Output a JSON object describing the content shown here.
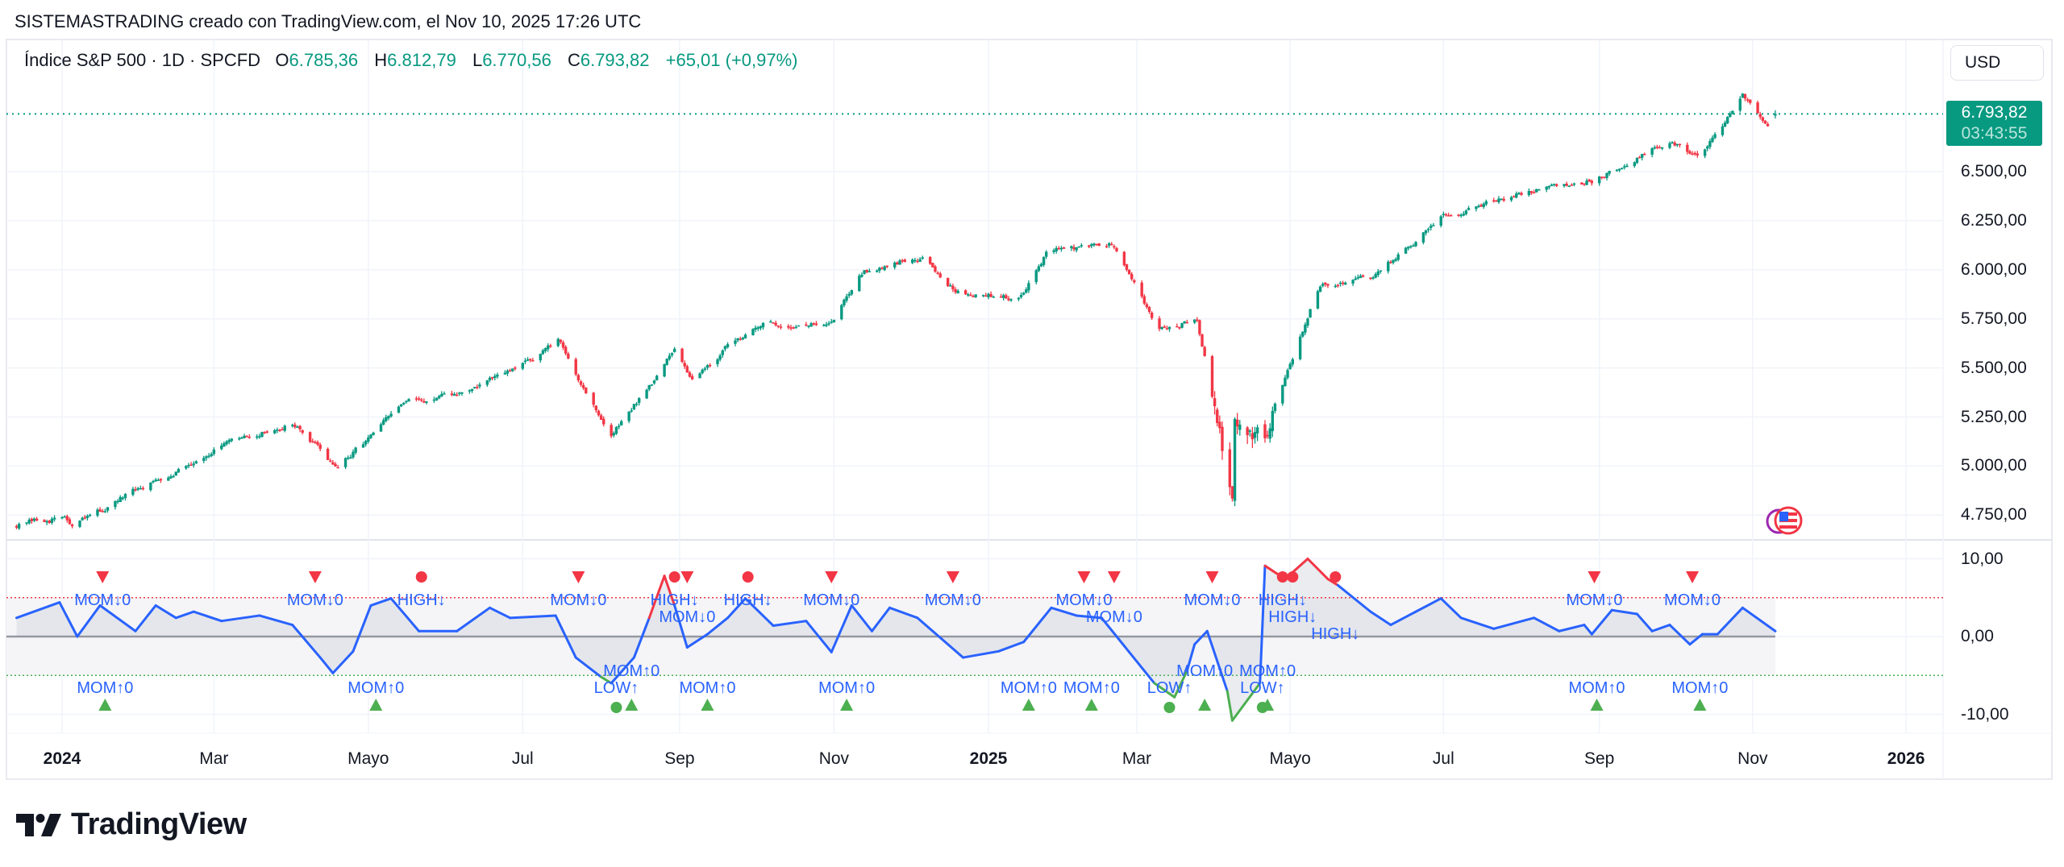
{
  "header": {
    "title": "SISTEMASTRADING creado con TradingView.com, el Nov 10, 2025 17:26 UTC"
  },
  "legend": {
    "symbol": "Índice S&P 500 · 1D · SPCFD",
    "open_label": "O",
    "open": "6.785,36",
    "high_label": "H",
    "high": "6.812,79",
    "low_label": "L",
    "low": "6.770,56",
    "close_label": "C",
    "close": "6.793,82",
    "change": "+65,01 (+0,97%)"
  },
  "currency_button": "USD",
  "last_price": {
    "value": "6.793,82",
    "countdown": "03:43:55"
  },
  "colors": {
    "up": "#089981",
    "down": "#f23645",
    "indicator": "#2962ff",
    "overbought": "#f23645",
    "oversold": "#4caf50"
  },
  "branding": {
    "logo_text": "TradingView"
  },
  "chart_data": [
    {
      "type": "candlestick",
      "title": "Índice S&P 500 · 1D · SPCFD",
      "y_ticks": [
        "6.500,00",
        "6.250,00",
        "6.000,00",
        "5.750,00",
        "5.500,00",
        "5.250,00",
        "5.000,00",
        "4.750,00"
      ],
      "y_tick_values": [
        6500,
        6250,
        6000,
        5750,
        5500,
        5250,
        5000,
        4750
      ],
      "ylim": [
        4623,
        7173
      ],
      "last_candle": {
        "date": "2025-11-10",
        "open": 6785.36,
        "high": 6812.79,
        "low": 6770.56,
        "close": 6793.82
      },
      "close_anchors": [
        [
          "2023-12-14",
          4700
        ],
        [
          "2024-01-02",
          4740
        ],
        [
          "2024-01-05",
          4690
        ],
        [
          "2024-02-01",
          4884
        ],
        [
          "2024-03-01",
          5085
        ],
        [
          "2024-04-01",
          5219
        ],
        [
          "2024-04-19",
          4985
        ],
        [
          "2024-05-15",
          5320
        ],
        [
          "2024-06-03",
          5353
        ],
        [
          "2024-06-28",
          5487
        ],
        [
          "2024-07-15",
          5634
        ],
        [
          "2024-08-05",
          5152
        ],
        [
          "2024-08-30",
          5587
        ],
        [
          "2024-09-06",
          5453
        ],
        [
          "2024-10-01",
          5721
        ],
        [
          "2024-10-31",
          5720
        ],
        [
          "2024-11-11",
          5990
        ],
        [
          "2024-12-06",
          6070
        ],
        [
          "2024-12-19",
          5889
        ],
        [
          "2025-01-13",
          5855
        ],
        [
          "2025-01-24",
          6090
        ],
        [
          "2025-02-19",
          6130
        ],
        [
          "2025-03-10",
          5688
        ],
        [
          "2025-03-25",
          5755
        ],
        [
          "2025-04-04",
          5100
        ],
        [
          "2025-04-08",
          4884
        ],
        [
          "2025-04-09",
          5252
        ],
        [
          "2025-04-21",
          5152
        ],
        [
          "2025-05-02",
          5554
        ],
        [
          "2025-05-13",
          5922
        ],
        [
          "2025-06-02",
          5956
        ],
        [
          "2025-06-30",
          6257
        ],
        [
          "2025-07-31",
          6391
        ],
        [
          "2025-08-29",
          6458
        ],
        [
          "2025-09-30",
          6659
        ],
        [
          "2025-10-10",
          6560
        ],
        [
          "2025-10-28",
          6880
        ],
        [
          "2025-11-07",
          6726
        ],
        [
          "2025-11-10",
          6793.82
        ]
      ]
    },
    {
      "type": "line",
      "title": "Momentum oscillator",
      "y_ticks": [
        "10,00",
        "0,00",
        "-10,00"
      ],
      "y_tick_values": [
        10,
        0,
        -10
      ],
      "ylim": [
        -12.6,
        12.5
      ],
      "upper_level": 5,
      "lower_level": -5,
      "series": [
        [
          "2023-12-14",
          2.4
        ],
        [
          "2023-12-31",
          4.4
        ],
        [
          "2024-01-07",
          0
        ],
        [
          "2024-01-16",
          4
        ],
        [
          "2024-01-30",
          0.7
        ],
        [
          "2024-02-07",
          4
        ],
        [
          "2024-02-15",
          2.4
        ],
        [
          "2024-02-22",
          3.2
        ],
        [
          "2024-03-04",
          2.0
        ],
        [
          "2024-03-19",
          2.7
        ],
        [
          "2024-04-01",
          1.5
        ],
        [
          "2024-04-12",
          -2.7
        ],
        [
          "2024-04-17",
          -4.7
        ],
        [
          "2024-04-25",
          -1.9
        ],
        [
          "2024-05-02",
          4
        ],
        [
          "2024-05-10",
          4.9
        ],
        [
          "2024-05-21",
          0.7
        ],
        [
          "2024-06-05",
          0.7
        ],
        [
          "2024-06-18",
          3.7
        ],
        [
          "2024-06-26",
          2.4
        ],
        [
          "2024-07-14",
          2.7
        ],
        [
          "2024-07-22",
          -2.7
        ],
        [
          "2024-08-01",
          -5.2
        ],
        [
          "2024-08-05",
          -6
        ],
        [
          "2024-08-14",
          -2.7
        ],
        [
          "2024-08-20",
          2.4
        ],
        [
          "2024-08-26",
          7.8
        ],
        [
          "2024-08-30",
          4
        ],
        [
          "2024-09-04",
          -1.4
        ],
        [
          "2024-09-12",
          0.3
        ],
        [
          "2024-09-20",
          2.4
        ],
        [
          "2024-09-27",
          4.9
        ],
        [
          "2024-10-08",
          1.4
        ],
        [
          "2024-10-21",
          2.0
        ],
        [
          "2024-10-31",
          -2
        ],
        [
          "2024-11-08",
          4
        ],
        [
          "2024-11-16",
          0.7
        ],
        [
          "2024-11-23",
          3.7
        ],
        [
          "2024-12-04",
          2.4
        ],
        [
          "2024-12-22",
          -2.7
        ],
        [
          "2025-01-05",
          -1.9
        ],
        [
          "2025-01-15",
          -0.7
        ],
        [
          "2025-01-26",
          3.7
        ],
        [
          "2025-02-05",
          2.7
        ],
        [
          "2025-02-15",
          2.4
        ],
        [
          "2025-03-08",
          -6
        ],
        [
          "2025-03-16",
          -7.8
        ],
        [
          "2025-03-21",
          -4.4
        ],
        [
          "2025-03-24",
          -1
        ],
        [
          "2025-03-29",
          0.7
        ],
        [
          "2025-04-06",
          -7
        ],
        [
          "2025-04-08",
          -10.8
        ],
        [
          "2025-04-19",
          -6
        ],
        [
          "2025-04-21",
          9.1
        ],
        [
          "2025-04-29",
          7.4
        ],
        [
          "2025-05-08",
          10
        ],
        [
          "2025-05-16",
          7.4
        ],
        [
          "2025-05-20",
          6.6
        ],
        [
          "2025-06-02",
          3.2
        ],
        [
          "2025-06-10",
          1.5
        ],
        [
          "2025-06-20",
          3.2
        ],
        [
          "2025-06-30",
          4.9
        ],
        [
          "2025-07-08",
          2.4
        ],
        [
          "2025-07-21",
          1
        ],
        [
          "2025-08-06",
          2.4
        ],
        [
          "2025-08-16",
          0.7
        ],
        [
          "2025-08-26",
          1.5
        ],
        [
          "2025-08-29",
          0.3
        ],
        [
          "2025-09-06",
          3.4
        ],
        [
          "2025-09-16",
          2.9
        ],
        [
          "2025-09-22",
          0.7
        ],
        [
          "2025-09-29",
          1.5
        ],
        [
          "2025-10-07",
          -1
        ],
        [
          "2025-10-12",
          0.3
        ],
        [
          "2025-10-18",
          0.3
        ],
        [
          "2025-10-28",
          3.7
        ],
        [
          "2025-11-10",
          0.7
        ]
      ],
      "signals": [
        {
          "date": "2024-01-17",
          "kind": "mom-down",
          "label": "MOM↓0"
        },
        {
          "date": "2024-04-10",
          "kind": "mom-down",
          "label": "MOM↓0"
        },
        {
          "date": "2024-07-23",
          "kind": "mom-down",
          "label": "MOM↓0"
        },
        {
          "date": "2024-09-04",
          "kind": "mom-down",
          "label": "MOM↓0"
        },
        {
          "date": "2024-10-31",
          "kind": "mom-down",
          "label": "MOM↓0"
        },
        {
          "date": "2024-12-18",
          "kind": "mom-down",
          "label": "MOM↓0"
        },
        {
          "date": "2025-02-08",
          "kind": "mom-down",
          "label": "MOM↓0"
        },
        {
          "date": "2025-02-20",
          "kind": "mom-down",
          "label": "MOM↓0"
        },
        {
          "date": "2025-03-31",
          "kind": "mom-down",
          "label": "MOM↓0"
        },
        {
          "date": "2025-08-30",
          "kind": "mom-down",
          "label": "MOM↓0"
        },
        {
          "date": "2025-10-08",
          "kind": "mom-down",
          "label": "MOM↓0"
        },
        {
          "date": "2024-05-22",
          "kind": "high",
          "label": "HIGH↓"
        },
        {
          "date": "2024-08-30",
          "kind": "high",
          "label": "HIGH↓"
        },
        {
          "date": "2024-09-28",
          "kind": "high",
          "label": "HIGH↓"
        },
        {
          "date": "2025-04-28",
          "kind": "high",
          "label": "HIGH↓"
        },
        {
          "date": "2025-05-02",
          "kind": "high",
          "label": "HIGH↓"
        },
        {
          "date": "2025-05-19",
          "kind": "high",
          "label": "HIGH↓"
        },
        {
          "date": "2024-01-18",
          "kind": "mom-up",
          "label": "MOM↑0"
        },
        {
          "date": "2024-05-04",
          "kind": "mom-up",
          "label": "MOM↑0"
        },
        {
          "date": "2024-08-13",
          "kind": "mom-up",
          "label": "MOM↑0"
        },
        {
          "date": "2024-09-12",
          "kind": "mom-up",
          "label": "MOM↑0"
        },
        {
          "date": "2024-11-06",
          "kind": "mom-up",
          "label": "MOM↑0"
        },
        {
          "date": "2025-01-17",
          "kind": "mom-up",
          "label": "MOM↑0"
        },
        {
          "date": "2025-02-11",
          "kind": "mom-up",
          "label": "MOM↑0"
        },
        {
          "date": "2025-03-28",
          "kind": "mom-up",
          "label": "MOM↑0"
        },
        {
          "date": "2025-04-22",
          "kind": "mom-up",
          "label": "MOM↑0"
        },
        {
          "date": "2025-08-31",
          "kind": "mom-up",
          "label": "MOM↑0"
        },
        {
          "date": "2025-10-11",
          "kind": "mom-up",
          "label": "MOM↑0"
        },
        {
          "date": "2024-08-07",
          "kind": "low",
          "label": "LOW↑"
        },
        {
          "date": "2025-03-14",
          "kind": "low",
          "label": "LOW↑"
        },
        {
          "date": "2025-04-20",
          "kind": "low",
          "label": "LOW↑"
        }
      ]
    }
  ],
  "time_axis": [
    {
      "date": "2024-01-01",
      "label": "2024",
      "bold": true
    },
    {
      "date": "2024-03-01",
      "label": "Mar"
    },
    {
      "date": "2024-05-01",
      "label": "Mayo"
    },
    {
      "date": "2024-07-01",
      "label": "Jul"
    },
    {
      "date": "2024-09-01",
      "label": "Sep"
    },
    {
      "date": "2024-11-01",
      "label": "Nov"
    },
    {
      "date": "2025-01-01",
      "label": "2025",
      "bold": true
    },
    {
      "date": "2025-03-01",
      "label": "Mar"
    },
    {
      "date": "2025-05-01",
      "label": "Mayo"
    },
    {
      "date": "2025-07-01",
      "label": "Jul"
    },
    {
      "date": "2025-09-01",
      "label": "Sep"
    },
    {
      "date": "2025-11-01",
      "label": "Nov"
    },
    {
      "date": "2026-01-01",
      "label": "2026",
      "bold": true
    }
  ]
}
